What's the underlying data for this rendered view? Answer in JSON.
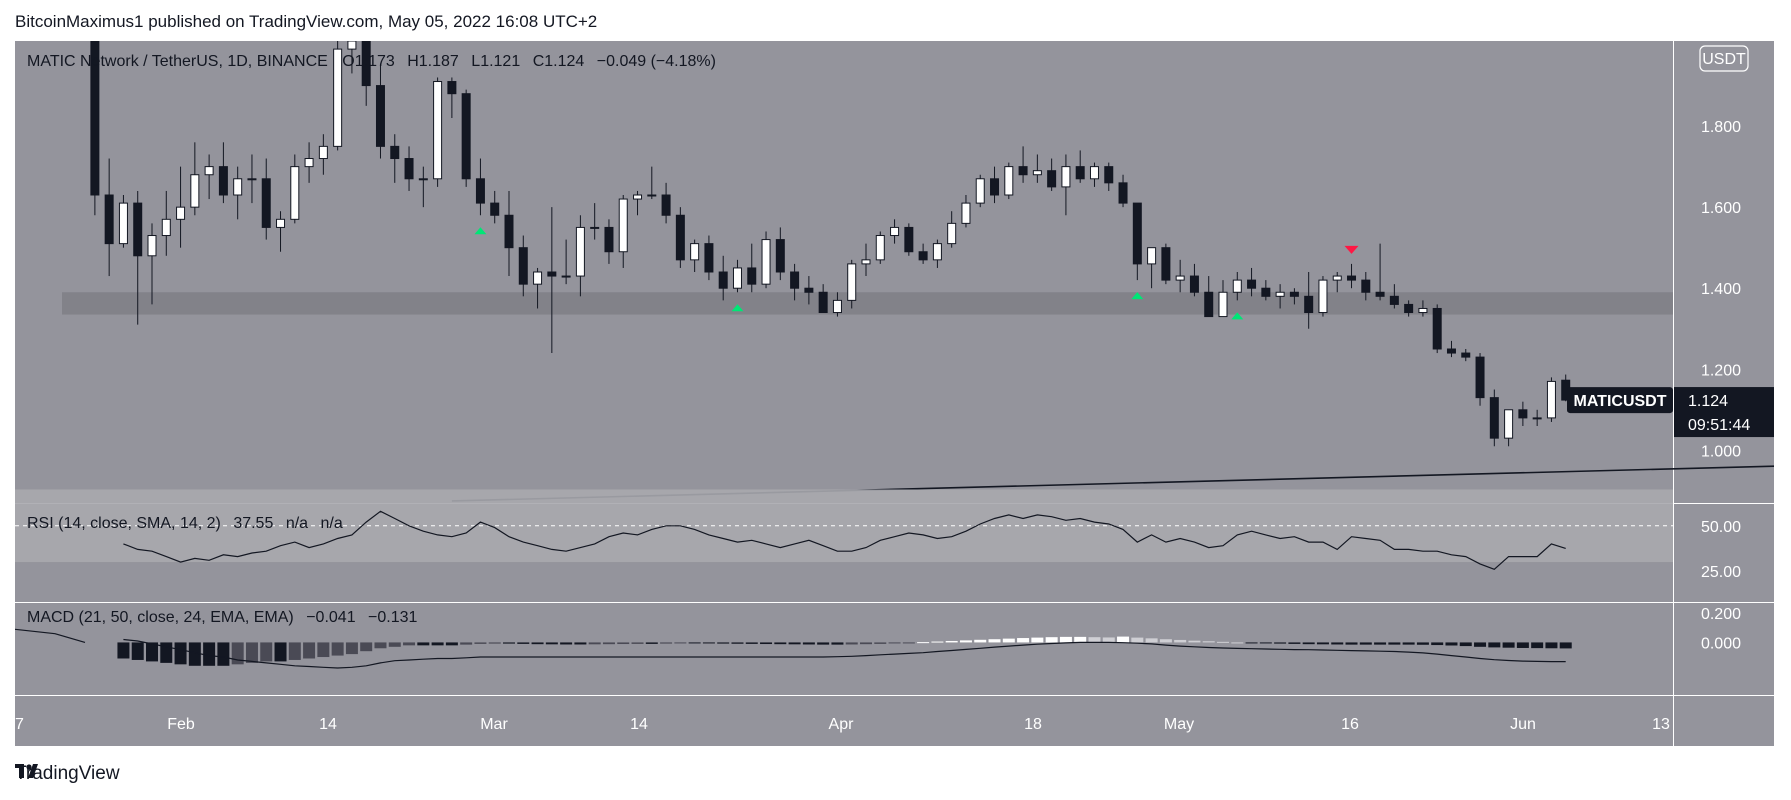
{
  "header": {
    "published_by": "BitcoinMaximus1 published on TradingView.com, May 05, 2022 16:08 UTC+2"
  },
  "footer": {
    "brand": "TradingView",
    "logo_icon": "tradingview-logo-icon"
  },
  "chart_data": [
    {
      "type": "candlestick",
      "title": "MATIC Network / TetherUS, 1D, BINANCE",
      "ohlc_legend": {
        "o_label": "O",
        "o": "1.173",
        "h_label": "H",
        "h": "1.187",
        "l_label": "L",
        "l": "1.121",
        "c_label": "C",
        "c": "1.124",
        "change": "−0.049 (−4.18%)"
      },
      "currency_badge": "USDT",
      "ticker_tag": "MATICUSDT",
      "last_price": "1.124",
      "countdown": "09:51:44",
      "yticks": [
        "1.800",
        "1.600",
        "1.400",
        "1.200",
        "1.000"
      ],
      "ylim": [
        0.87,
        2.01
      ],
      "date_labels": [
        "7",
        "Feb",
        "14",
        "Mar",
        "14",
        "Apr",
        "18",
        "May",
        "16",
        "Jun",
        "13"
      ],
      "support_zone": [
        1.335,
        1.39
      ],
      "ascending_line": {
        "start": [
          "2022-02-22",
          0.875
        ],
        "end": [
          "2022-06-13",
          0.978
        ]
      },
      "green_up_arrows": [
        "2022-02-24",
        "2022-03-14",
        "2022-04-11",
        "2022-04-18"
      ],
      "red_down_arrow": "2022-04-26",
      "colors": {
        "up": "#ffffff",
        "down": "#131722",
        "support": "#7f7f86",
        "buy_marker": "#00e676",
        "sell_marker": "#ff1744"
      },
      "candles": [
        [
          "2022-01-28",
          2.44,
          2.52,
          1.58,
          1.63
        ],
        [
          "2022-01-29",
          1.63,
          1.72,
          1.43,
          1.51
        ],
        [
          "2022-01-30",
          1.51,
          1.63,
          1.5,
          1.61
        ],
        [
          "2022-01-31",
          1.61,
          1.64,
          1.31,
          1.48
        ],
        [
          "2022-02-01",
          1.48,
          1.56,
          1.36,
          1.53
        ],
        [
          "2022-02-02",
          1.53,
          1.64,
          1.48,
          1.57
        ],
        [
          "2022-02-03",
          1.57,
          1.7,
          1.5,
          1.6
        ],
        [
          "2022-02-04",
          1.6,
          1.76,
          1.58,
          1.68
        ],
        [
          "2022-02-05",
          1.68,
          1.73,
          1.62,
          1.7
        ],
        [
          "2022-02-06",
          1.7,
          1.76,
          1.61,
          1.63
        ],
        [
          "2022-02-07",
          1.63,
          1.7,
          1.57,
          1.67
        ],
        [
          "2022-02-08",
          1.67,
          1.73,
          1.61,
          1.67
        ],
        [
          "2022-02-09",
          1.67,
          1.72,
          1.52,
          1.55
        ],
        [
          "2022-02-10",
          1.55,
          1.59,
          1.49,
          1.57
        ],
        [
          "2022-02-11",
          1.57,
          1.73,
          1.56,
          1.7
        ],
        [
          "2022-02-12",
          1.7,
          1.76,
          1.66,
          1.72
        ],
        [
          "2022-02-13",
          1.72,
          1.78,
          1.68,
          1.75
        ],
        [
          "2022-02-14",
          1.75,
          2.02,
          1.74,
          1.99
        ],
        [
          "2022-02-15",
          1.99,
          2.05,
          1.93,
          2.01
        ],
        [
          "2022-02-16",
          2.01,
          2.04,
          1.85,
          1.9
        ],
        [
          "2022-02-17",
          1.9,
          1.95,
          1.72,
          1.75
        ],
        [
          "2022-02-18",
          1.75,
          1.78,
          1.66,
          1.72
        ],
        [
          "2022-02-19",
          1.72,
          1.75,
          1.64,
          1.67
        ],
        [
          "2022-02-20",
          1.67,
          1.7,
          1.6,
          1.67
        ],
        [
          "2022-02-21",
          1.67,
          1.92,
          1.65,
          1.91
        ],
        [
          "2022-02-22",
          1.91,
          1.92,
          1.82,
          1.88
        ],
        [
          "2022-02-23",
          1.88,
          1.89,
          1.65,
          1.67
        ],
        [
          "2022-02-24",
          1.67,
          1.72,
          1.58,
          1.61
        ],
        [
          "2022-02-25",
          1.61,
          1.64,
          1.56,
          1.58
        ],
        [
          "2022-02-26",
          1.58,
          1.64,
          1.43,
          1.5
        ],
        [
          "2022-02-27",
          1.5,
          1.53,
          1.38,
          1.41
        ],
        [
          "2022-02-28",
          1.41,
          1.45,
          1.35,
          1.44
        ],
        [
          "2022-03-01",
          1.44,
          1.6,
          1.24,
          1.43
        ],
        [
          "2022-03-02",
          1.43,
          1.52,
          1.41,
          1.43
        ],
        [
          "2022-03-03",
          1.43,
          1.58,
          1.38,
          1.55
        ],
        [
          "2022-03-04",
          1.55,
          1.61,
          1.52,
          1.55
        ],
        [
          "2022-03-05",
          1.55,
          1.57,
          1.46,
          1.49
        ],
        [
          "2022-03-06",
          1.49,
          1.63,
          1.45,
          1.62
        ],
        [
          "2022-03-07",
          1.62,
          1.64,
          1.58,
          1.63
        ],
        [
          "2022-03-08",
          1.63,
          1.7,
          1.62,
          1.63
        ],
        [
          "2022-03-09",
          1.63,
          1.66,
          1.56,
          1.58
        ],
        [
          "2022-03-10",
          1.58,
          1.6,
          1.45,
          1.47
        ],
        [
          "2022-03-11",
          1.47,
          1.52,
          1.44,
          1.51
        ],
        [
          "2022-03-12",
          1.51,
          1.53,
          1.42,
          1.44
        ],
        [
          "2022-03-13",
          1.44,
          1.48,
          1.37,
          1.4
        ],
        [
          "2022-03-14",
          1.4,
          1.47,
          1.39,
          1.45
        ],
        [
          "2022-03-15",
          1.45,
          1.51,
          1.39,
          1.41
        ],
        [
          "2022-03-16",
          1.41,
          1.54,
          1.4,
          1.52
        ],
        [
          "2022-03-17",
          1.52,
          1.55,
          1.42,
          1.44
        ],
        [
          "2022-03-18",
          1.44,
          1.46,
          1.37,
          1.4
        ],
        [
          "2022-03-19",
          1.4,
          1.43,
          1.36,
          1.39
        ],
        [
          "2022-03-20",
          1.39,
          1.41,
          1.34,
          1.34
        ],
        [
          "2022-03-21",
          1.34,
          1.39,
          1.33,
          1.37
        ],
        [
          "2022-03-22",
          1.37,
          1.47,
          1.35,
          1.46
        ],
        [
          "2022-03-23",
          1.46,
          1.51,
          1.43,
          1.47
        ],
        [
          "2022-03-24",
          1.47,
          1.54,
          1.46,
          1.53
        ],
        [
          "2022-03-25",
          1.53,
          1.57,
          1.51,
          1.55
        ],
        [
          "2022-03-26",
          1.55,
          1.56,
          1.48,
          1.49
        ],
        [
          "2022-03-27",
          1.49,
          1.51,
          1.46,
          1.47
        ],
        [
          "2022-03-28",
          1.47,
          1.52,
          1.45,
          1.51
        ],
        [
          "2022-03-29",
          1.51,
          1.59,
          1.5,
          1.56
        ],
        [
          "2022-03-30",
          1.56,
          1.63,
          1.55,
          1.61
        ],
        [
          "2022-03-31",
          1.61,
          1.68,
          1.6,
          1.67
        ],
        [
          "2022-04-01",
          1.67,
          1.7,
          1.61,
          1.63
        ],
        [
          "2022-04-02",
          1.63,
          1.71,
          1.62,
          1.7
        ],
        [
          "2022-04-03",
          1.7,
          1.75,
          1.66,
          1.68
        ],
        [
          "2022-04-04",
          1.68,
          1.73,
          1.66,
          1.69
        ],
        [
          "2022-04-05",
          1.69,
          1.72,
          1.64,
          1.65
        ],
        [
          "2022-04-06",
          1.65,
          1.73,
          1.58,
          1.7
        ],
        [
          "2022-04-07",
          1.7,
          1.74,
          1.66,
          1.67
        ],
        [
          "2022-04-08",
          1.67,
          1.71,
          1.65,
          1.7
        ],
        [
          "2022-04-09",
          1.7,
          1.71,
          1.64,
          1.66
        ],
        [
          "2022-04-10",
          1.66,
          1.68,
          1.6,
          1.61
        ],
        [
          "2022-04-11",
          1.61,
          1.61,
          1.42,
          1.46
        ],
        [
          "2022-04-12",
          1.46,
          1.5,
          1.4,
          1.5
        ],
        [
          "2022-04-13",
          1.5,
          1.51,
          1.41,
          1.42
        ],
        [
          "2022-04-14",
          1.42,
          1.47,
          1.39,
          1.43
        ],
        [
          "2022-04-15",
          1.43,
          1.46,
          1.38,
          1.39
        ],
        [
          "2022-04-16",
          1.39,
          1.43,
          1.33,
          1.33
        ],
        [
          "2022-04-17",
          1.33,
          1.42,
          1.33,
          1.39
        ],
        [
          "2022-04-18",
          1.39,
          1.44,
          1.37,
          1.42
        ],
        [
          "2022-04-19",
          1.42,
          1.45,
          1.38,
          1.4
        ],
        [
          "2022-04-20",
          1.4,
          1.42,
          1.37,
          1.38
        ],
        [
          "2022-04-21",
          1.38,
          1.41,
          1.35,
          1.39
        ],
        [
          "2022-04-22",
          1.39,
          1.4,
          1.36,
          1.38
        ],
        [
          "2022-04-23",
          1.38,
          1.44,
          1.3,
          1.34
        ],
        [
          "2022-04-24",
          1.34,
          1.43,
          1.33,
          1.42
        ],
        [
          "2022-04-25",
          1.42,
          1.44,
          1.39,
          1.43
        ],
        [
          "2022-04-26",
          1.43,
          1.46,
          1.4,
          1.42
        ],
        [
          "2022-04-27",
          1.42,
          1.44,
          1.37,
          1.39
        ],
        [
          "2022-04-28",
          1.39,
          1.51,
          1.37,
          1.38
        ],
        [
          "2022-04-29",
          1.38,
          1.41,
          1.35,
          1.36
        ],
        [
          "2022-04-30",
          1.36,
          1.37,
          1.33,
          1.34
        ],
        [
          "2022-05-01",
          1.34,
          1.37,
          1.33,
          1.35
        ],
        [
          "2022-05-02",
          1.35,
          1.36,
          1.24,
          1.25
        ],
        [
          "2022-05-03",
          1.25,
          1.27,
          1.23,
          1.24
        ],
        [
          "2022-05-04",
          1.24,
          1.25,
          1.22,
          1.23
        ],
        [
          "2022-05-05",
          1.23,
          1.24,
          1.11,
          1.13
        ],
        [
          "2022-05-06",
          1.13,
          1.15,
          1.01,
          1.03
        ],
        [
          "2022-05-07",
          1.03,
          1.1,
          1.01,
          1.1
        ],
        [
          "2022-05-08",
          1.1,
          1.12,
          1.06,
          1.08
        ],
        [
          "2022-05-09",
          1.08,
          1.1,
          1.06,
          1.08
        ],
        [
          "2022-05-10",
          1.08,
          1.18,
          1.07,
          1.17
        ],
        [
          "2022-05-11",
          1.173,
          1.187,
          1.121,
          1.124
        ]
      ]
    },
    {
      "type": "line",
      "title": "RSI (14, close, SMA, 14, 2)",
      "value": "37.55",
      "na1": "n/a",
      "na2": "n/a",
      "yticks": [
        "50.00",
        "25.00"
      ],
      "ylim": [
        8,
        62
      ],
      "band": [
        30,
        70
      ],
      "midline": 50,
      "values": [
        40,
        37,
        36,
        33,
        30,
        32,
        31,
        34,
        33,
        35,
        36,
        39,
        41,
        38,
        40,
        43,
        45,
        52,
        58,
        54,
        50,
        47,
        45,
        44,
        46,
        52,
        49,
        44,
        41,
        39,
        37,
        36,
        38,
        40,
        44,
        46,
        45,
        48,
        50,
        50,
        48,
        45,
        43,
        41,
        42,
        40,
        38,
        40,
        42,
        39,
        36,
        36,
        38,
        42,
        44,
        46,
        45,
        43,
        44,
        47,
        51,
        54,
        56,
        54,
        56,
        55,
        53,
        54,
        52,
        51,
        48,
        41,
        45,
        41,
        43,
        41,
        38,
        39,
        45,
        47,
        45,
        43,
        44,
        41,
        41,
        37,
        44,
        43,
        42,
        37,
        37,
        36,
        36,
        34,
        33,
        29,
        26,
        33,
        33,
        33,
        40,
        37.55
      ]
    },
    {
      "type": "bar",
      "title": "MACD (21, 50, close, 24, EMA, EMA)",
      "value1": "−0.041",
      "value2": "−0.131",
      "yticks": [
        "0.200",
        "0.000"
      ],
      "ylim": [
        -0.36,
        0.27
      ],
      "histogram": [
        -0.11,
        -0.12,
        -0.13,
        -0.14,
        -0.15,
        -0.16,
        -0.16,
        -0.16,
        -0.15,
        -0.14,
        -0.13,
        -0.13,
        -0.12,
        -0.11,
        -0.1,
        -0.09,
        -0.08,
        -0.06,
        -0.04,
        -0.03,
        -0.02,
        -0.02,
        -0.02,
        -0.02,
        -0.015,
        -0.01,
        -0.008,
        -0.008,
        -0.01,
        -0.012,
        -0.013,
        -0.014,
        -0.014,
        -0.013,
        -0.012,
        -0.011,
        -0.01,
        -0.01,
        -0.008,
        -0.006,
        -0.006,
        -0.007,
        -0.008,
        -0.009,
        -0.01,
        -0.011,
        -0.012,
        -0.013,
        -0.014,
        -0.015,
        -0.015,
        -0.014,
        -0.012,
        -0.01,
        -0.006,
        -0.002,
        0.002,
        0.006,
        0.01,
        0.014,
        0.018,
        0.022,
        0.026,
        0.03,
        0.033,
        0.036,
        0.038,
        0.038,
        0.036,
        0.034,
        0.04,
        0.033,
        0.028,
        0.022,
        0.017,
        0.012,
        0.008,
        0.004,
        0.0,
        -0.004,
        -0.006,
        -0.008,
        -0.01,
        -0.012,
        -0.013,
        -0.014,
        -0.015,
        -0.015,
        -0.015,
        -0.015,
        -0.015,
        -0.016,
        -0.018,
        -0.021,
        -0.025,
        -0.03,
        -0.034,
        -0.036,
        -0.038,
        -0.039,
        -0.04,
        -0.041
      ],
      "signal": [
        0.02,
        0.01,
        -0.01,
        -0.03,
        -0.05,
        -0.07,
        -0.09,
        -0.1,
        -0.12,
        -0.13,
        -0.14,
        -0.15,
        -0.16,
        -0.165,
        -0.17,
        -0.175,
        -0.17,
        -0.16,
        -0.14,
        -0.125,
        -0.12,
        -0.115,
        -0.11,
        -0.11,
        -0.105,
        -0.1,
        -0.1,
        -0.1,
        -0.1,
        -0.1,
        -0.1,
        -0.1,
        -0.1,
        -0.1,
        -0.1,
        -0.1,
        -0.1,
        -0.1,
        -0.1,
        -0.1,
        -0.1,
        -0.1,
        -0.1,
        -0.1,
        -0.1,
        -0.1,
        -0.1,
        -0.1,
        -0.1,
        -0.1,
        -0.098,
        -0.095,
        -0.09,
        -0.085,
        -0.08,
        -0.075,
        -0.07,
        -0.062,
        -0.055,
        -0.048,
        -0.04,
        -0.032,
        -0.025,
        -0.018,
        -0.012,
        -0.007,
        -0.003,
        0.0,
        0.0,
        0.0,
        -0.002,
        -0.005,
        -0.01,
        -0.018,
        -0.025,
        -0.03,
        -0.035,
        -0.038,
        -0.041,
        -0.043,
        -0.045,
        -0.047,
        -0.049,
        -0.05,
        -0.052,
        -0.054,
        -0.056,
        -0.058,
        -0.06,
        -0.062,
        -0.066,
        -0.072,
        -0.08,
        -0.09,
        -0.1,
        -0.11,
        -0.118,
        -0.124,
        -0.128,
        -0.13,
        -0.131,
        -0.131
      ]
    }
  ]
}
